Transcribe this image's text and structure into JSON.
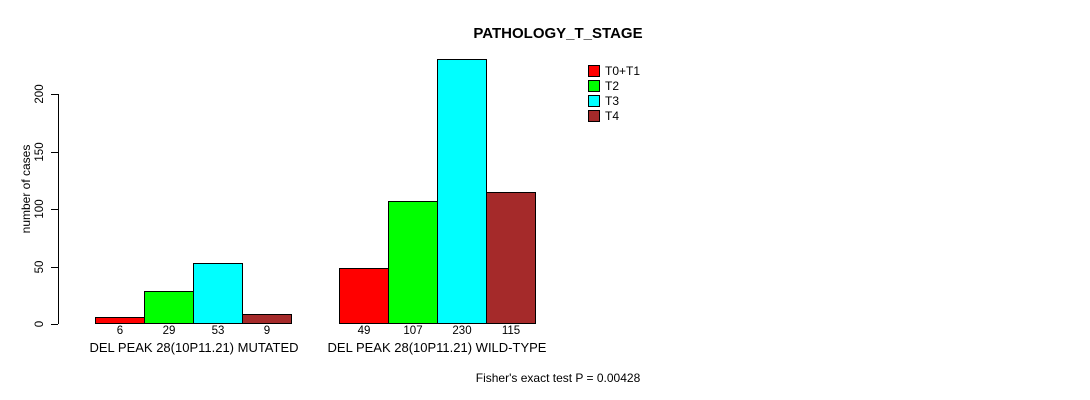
{
  "chart_data": {
    "type": "bar",
    "title": "PATHOLOGY_T_STAGE",
    "ylabel": "number of cases",
    "xlabel": "",
    "groups": [
      "DEL PEAK 28(10P11.21) MUTATED",
      "DEL PEAK 28(10P11.21) WILD-TYPE"
    ],
    "series": [
      {
        "name": "T0+T1",
        "color": "#FF0000",
        "values": [
          6,
          49
        ]
      },
      {
        "name": "T2",
        "color": "#00FF00",
        "values": [
          29,
          107
        ]
      },
      {
        "name": "T3",
        "color": "#00FFFF",
        "values": [
          53,
          230
        ]
      },
      {
        "name": "T4",
        "color": "#A52A2A",
        "values": [
          9,
          115
        ]
      }
    ],
    "bar_value_labels": [
      [
        6,
        29,
        53,
        9
      ],
      [
        49,
        107,
        230,
        115
      ]
    ],
    "yticks": [
      0,
      50,
      100,
      150,
      200
    ],
    "ylim": [
      0,
      230
    ],
    "grid": false,
    "legend_position": "top-right",
    "bar_border_color": "#000000",
    "background_color": "#FFFFFF",
    "annotation": "Fisher's exact test P = 0.00428"
  }
}
